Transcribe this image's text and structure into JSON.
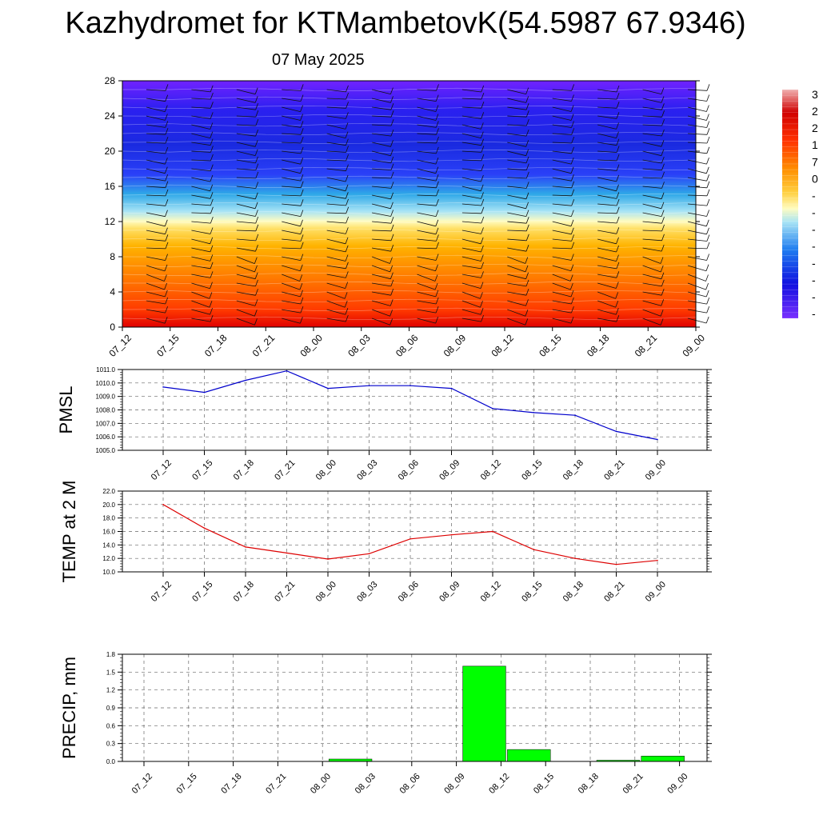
{
  "title": "Kazhydromet for KTMambetovK(54.5987 67.9346)",
  "subtitle": "07 May 2025",
  "time_labels": [
    "07_12",
    "07_15",
    "07_18",
    "07_21",
    "08_00",
    "08_03",
    "08_06",
    "08_09",
    "08_12",
    "08_15",
    "08_18",
    "08_21",
    "09_00"
  ],
  "chart_data": [
    {
      "type": "heatmap",
      "name": "temperature-wind-cross-section",
      "x": [
        "07_12",
        "07_15",
        "07_18",
        "07_21",
        "08_00",
        "08_03",
        "08_06",
        "08_09",
        "08_12",
        "08_15",
        "08_18",
        "08_21",
        "09_00"
      ],
      "y_ticks": [
        0,
        4,
        8,
        12,
        16,
        20,
        24,
        28
      ],
      "ylim": [
        0,
        28
      ],
      "colorbar_labels": [
        "3",
        "2",
        "2",
        "1",
        "7",
        "0",
        "-",
        "-",
        "-",
        "-",
        "-",
        "-",
        "-",
        "-"
      ],
      "color_stops": [
        "#d00000",
        "#ff3300",
        "#ff7a00",
        "#ffb000",
        "#ffe066",
        "#fffcc0",
        "#a8e4f5",
        "#2ea8e8",
        "#1a4cff",
        "#2a10f0",
        "#6a22ff"
      ]
    },
    {
      "type": "line",
      "name": "PMSL",
      "ylabel": "PMSL",
      "x": [
        "07_12",
        "07_15",
        "07_18",
        "07_21",
        "08_00",
        "08_03",
        "08_06",
        "08_09",
        "08_12",
        "08_15",
        "08_18",
        "08_21",
        "09_00"
      ],
      "y": [
        1009.7,
        1009.3,
        1010.2,
        1010.9,
        1009.6,
        1009.8,
        1009.8,
        1009.6,
        1008.1,
        1007.8,
        1007.6,
        1006.4,
        1005.8
      ],
      "ylim": [
        1005.0,
        1011.0
      ],
      "y_ticks": [
        "1005.0",
        "1006.0",
        "1007.0",
        "1008.0",
        "1009.0",
        "1010.0",
        "1011.0"
      ],
      "color": "#0000cc"
    },
    {
      "type": "line",
      "name": "TEMP at 2 M",
      "ylabel": "TEMP at 2 M",
      "x": [
        "07_12",
        "07_15",
        "07_18",
        "07_21",
        "08_00",
        "08_03",
        "08_06",
        "08_09",
        "08_12",
        "08_15",
        "08_18",
        "08_21",
        "09_00"
      ],
      "y": [
        20.0,
        16.5,
        13.7,
        12.8,
        11.9,
        12.7,
        14.9,
        15.5,
        16.0,
        13.3,
        12.0,
        11.1,
        11.7
      ],
      "ylim": [
        10.0,
        22.0
      ],
      "y_ticks": [
        "10.0",
        "12.0",
        "14.0",
        "16.0",
        "18.0",
        "20.0",
        "22.0"
      ],
      "color": "#dd0000"
    },
    {
      "type": "bar",
      "name": "PRECIP, mm",
      "ylabel": "PRECIP, mm",
      "categories": [
        "07_12",
        "07_15",
        "07_18",
        "07_21",
        "08_00",
        "08_03",
        "08_06",
        "08_09",
        "08_12",
        "08_15",
        "08_18",
        "08_21",
        "09_00"
      ],
      "values": [
        0,
        0,
        0,
        0,
        0.04,
        0,
        0,
        1.6,
        0.2,
        0,
        0.02,
        0.09,
        0
      ],
      "ylim": [
        0,
        1.8
      ],
      "y_ticks": [
        "0.0",
        "0.3",
        "0.6",
        "0.9",
        "1.2",
        "1.5",
        "1.8"
      ],
      "color": "#00ff00"
    }
  ]
}
